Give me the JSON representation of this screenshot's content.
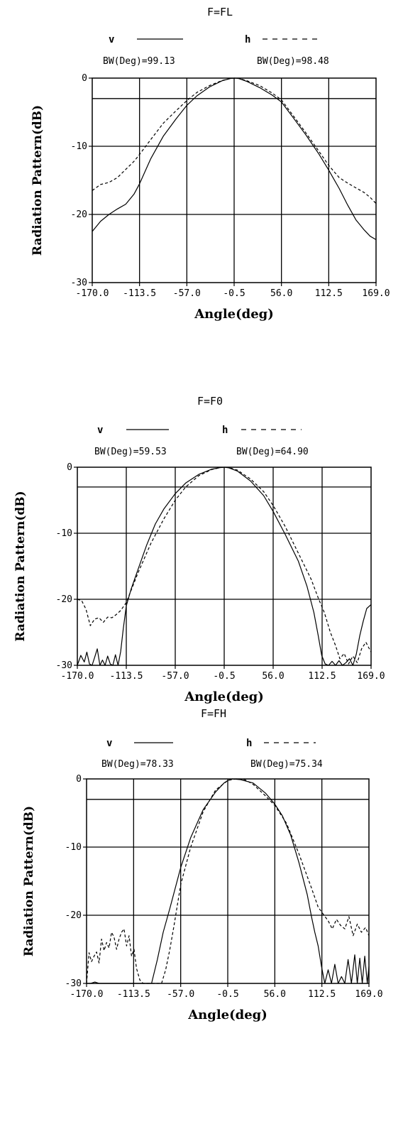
{
  "chart_data": [
    {
      "type": "line",
      "title": "F=FL",
      "xlabel": "Angle(deg)",
      "ylabel": "Radiation Pattern(dB)",
      "xlim": [
        -170,
        169
      ],
      "ylim": [
        -30,
        0
      ],
      "x_ticks": [
        "-170.0",
        "-113.5",
        "-57.0",
        "-0.5",
        "56.0",
        "112.5",
        "169.0"
      ],
      "y_ticks": [
        "0",
        "-10",
        "-20",
        "-30"
      ],
      "grid": true,
      "reference_line_db": -3,
      "series": [
        {
          "name": "v",
          "style": "solid",
          "beamwidth_label": "BW(Deg)=99.13",
          "x": [
            -170,
            -160,
            -150,
            -140,
            -130,
            -120,
            -113.5,
            -100,
            -85,
            -70,
            -57,
            -45,
            -30,
            -15,
            -5,
            0,
            5,
            15,
            30,
            45,
            56,
            70,
            85,
            100,
            112.5,
            125,
            135,
            145,
            155,
            162,
            169
          ],
          "y": [
            -22.5,
            -21,
            -20,
            -19.2,
            -18.5,
            -17,
            -15.5,
            -11.8,
            -8.5,
            -6,
            -4,
            -2.6,
            -1.3,
            -0.4,
            -0.05,
            0,
            -0.05,
            -0.5,
            -1.4,
            -2.5,
            -3.5,
            -5.8,
            -8.3,
            -11,
            -13.5,
            -16.2,
            -18.6,
            -20.8,
            -22.3,
            -23.2,
            -23.7
          ]
        },
        {
          "name": "h",
          "style": "dashed",
          "beamwidth_label": "BW(Deg)=98.48",
          "x": [
            -170,
            -160,
            -150,
            -140,
            -130,
            -120,
            -113.5,
            -100,
            -85,
            -70,
            -57,
            -45,
            -30,
            -15,
            -5,
            0,
            5,
            15,
            30,
            45,
            56,
            70,
            85,
            100,
            112.5,
            125,
            135,
            145,
            155,
            162,
            169
          ],
          "y": [
            -16.5,
            -15.6,
            -15.3,
            -14.6,
            -13.4,
            -12.2,
            -11.2,
            -9,
            -6.6,
            -4.8,
            -3.3,
            -2.1,
            -1.1,
            -0.35,
            -0.05,
            0,
            -0.05,
            -0.4,
            -1.1,
            -2.2,
            -3.2,
            -5.5,
            -8,
            -10.6,
            -12.8,
            -14.6,
            -15.4,
            -16.1,
            -16.8,
            -17.5,
            -18.4
          ]
        }
      ]
    },
    {
      "type": "line",
      "title": "F=F0",
      "xlabel": "Angle(deg)",
      "ylabel": "Radiation Pattern(dB)",
      "xlim": [
        -170,
        169
      ],
      "ylim": [
        -30,
        0
      ],
      "x_ticks": [
        "-170.0",
        "-113.5",
        "-57.0",
        "-0.5",
        "56.0",
        "112.5",
        "169.0"
      ],
      "y_ticks": [
        "0",
        "-10",
        "-20",
        "-30"
      ],
      "grid": true,
      "reference_line_db": -3,
      "series": [
        {
          "name": "v",
          "style": "solid",
          "beamwidth_label": "BW(Deg)=59.53",
          "x": [
            -170,
            -166,
            -162,
            -159,
            -156,
            -153,
            -150,
            -147,
            -144,
            -141,
            -138,
            -135,
            -132,
            -129,
            -126,
            -123,
            -120,
            -117,
            -113.5,
            -108,
            -100,
            -90,
            -80,
            -70,
            -57,
            -45,
            -30,
            -15,
            -5,
            0,
            5,
            15,
            30,
            45,
            56,
            70,
            85,
            95,
            103,
            108,
            112,
            116,
            120,
            124,
            128,
            132,
            136,
            140,
            144,
            148,
            152,
            156,
            160,
            164,
            169
          ],
          "y": [
            -30,
            -28.5,
            -29.5,
            -28,
            -29.8,
            -30,
            -28.8,
            -27.5,
            -30,
            -29.2,
            -30,
            -28.6,
            -29.8,
            -30,
            -28.4,
            -30,
            -27.9,
            -24.5,
            -21,
            -18.5,
            -15.5,
            -11.8,
            -8.6,
            -6.3,
            -4,
            -2.4,
            -1.1,
            -0.3,
            -0.05,
            0,
            -0.1,
            -0.6,
            -2.1,
            -4.3,
            -6.7,
            -10.2,
            -14.2,
            -18,
            -22,
            -25.5,
            -28.5,
            -29.8,
            -30,
            -29.4,
            -30,
            -29.3,
            -30,
            -29.6,
            -29,
            -30,
            -28.3,
            -25.5,
            -23.3,
            -21.4,
            -20.8
          ]
        },
        {
          "name": "h",
          "style": "dashed",
          "beamwidth_label": "BW(Deg)=64.90",
          "x": [
            -170,
            -165,
            -160,
            -155,
            -150,
            -145,
            -140,
            -135,
            -130,
            -125,
            -120,
            -113.5,
            -100,
            -85,
            -70,
            -57,
            -45,
            -30,
            -15,
            -5,
            0,
            5,
            15,
            30,
            45,
            56,
            70,
            85,
            100,
            108,
            115,
            122,
            128,
            133,
            138,
            143,
            148,
            153,
            158,
            163,
            169
          ],
          "y": [
            -20,
            -20.2,
            -21.5,
            -24,
            -23,
            -22.8,
            -23.5,
            -22.7,
            -22.8,
            -22.3,
            -21.7,
            -20.5,
            -16,
            -11.5,
            -7.8,
            -5,
            -3,
            -1.3,
            -0.35,
            -0.05,
            0,
            -0.05,
            -0.45,
            -1.8,
            -3.7,
            -5.8,
            -9,
            -13,
            -17,
            -19.8,
            -22,
            -25,
            -27,
            -29,
            -28.2,
            -29.8,
            -28.6,
            -29.6,
            -27.5,
            -26.5,
            -28
          ]
        }
      ]
    },
    {
      "type": "line",
      "title": "F=FH",
      "xlabel": "Angle(deg)",
      "ylabel": "Radiation Pattern(dB)",
      "xlim": [
        -170,
        169
      ],
      "ylim": [
        -30,
        0
      ],
      "x_ticks": [
        "-170.0",
        "-113.5",
        "-57.0",
        "-0.5",
        "56.0",
        "112.5",
        "169.0"
      ],
      "y_ticks": [
        "0",
        "-10",
        "-20",
        "-30"
      ],
      "grid": true,
      "reference_line_db": -3,
      "series": [
        {
          "name": "v",
          "style": "solid",
          "beamwidth_label": "BW(Deg)=78.33",
          "x": [
            -170,
            -165,
            -160,
            -155,
            -150,
            -145,
            -140,
            -135,
            -130,
            -125,
            -120,
            -115,
            -108,
            -100,
            -92,
            -85,
            -78,
            -70,
            -57,
            -45,
            -30,
            -15,
            -5,
            0,
            5,
            15,
            30,
            45,
            56,
            65,
            75,
            85,
            95,
            100,
            104,
            108,
            112,
            116,
            120,
            124,
            128,
            132,
            136,
            140,
            144,
            148,
            152,
            155,
            158,
            161,
            164,
            167,
            169
          ],
          "y": [
            -30,
            -30,
            -29.8,
            -30,
            -30,
            -30,
            -30,
            -30,
            -30,
            -30,
            -30,
            -30,
            -30,
            -30,
            -30,
            -26.5,
            -22.5,
            -19,
            -13,
            -8.6,
            -4.5,
            -1.9,
            -0.6,
            -0.2,
            0,
            -0.1,
            -0.6,
            -2.1,
            -3.7,
            -5.4,
            -8.2,
            -12.3,
            -17,
            -20.2,
            -22.5,
            -24.5,
            -27.5,
            -30,
            -28,
            -30,
            -27.2,
            -30,
            -29,
            -30,
            -26.5,
            -30,
            -25.8,
            -30,
            -26.3,
            -30,
            -26,
            -30,
            -27.5
          ]
        },
        {
          "name": "h",
          "style": "dashed",
          "beamwidth_label": "BW(Deg)=75.34",
          "x": [
            -170,
            -167,
            -164,
            -161,
            -158,
            -155,
            -152,
            -149,
            -146,
            -143,
            -140,
            -137,
            -134,
            -131,
            -128,
            -125,
            -122,
            -119,
            -116,
            -113,
            -110,
            -106,
            -102,
            -98,
            -94,
            -90,
            -85,
            -80,
            -75,
            -70,
            -65,
            -57,
            -45,
            -30,
            -15,
            0,
            10,
            20,
            30,
            45,
            56,
            70,
            85,
            100,
            108,
            115,
            120,
            125,
            130,
            135,
            140,
            145,
            150,
            155,
            160,
            165,
            169
          ],
          "y": [
            -30,
            -25.5,
            -26.8,
            -26,
            -25.4,
            -27,
            -23.5,
            -25.2,
            -24,
            -24.8,
            -22.5,
            -23.2,
            -25,
            -23.5,
            -22.5,
            -22,
            -24.5,
            -23,
            -26,
            -25,
            -27.8,
            -29.5,
            -30,
            -30,
            -30,
            -30,
            -30,
            -30,
            -28,
            -25,
            -21.5,
            -15.5,
            -10,
            -4.8,
            -1.6,
            -0.2,
            0,
            -0.1,
            -0.8,
            -2.5,
            -3.9,
            -6.5,
            -11,
            -16,
            -18.8,
            -20,
            -20.8,
            -22,
            -20.6,
            -21.5,
            -22,
            -20.2,
            -23,
            -21.3,
            -22.5,
            -21.8,
            -23
          ]
        }
      ]
    }
  ]
}
